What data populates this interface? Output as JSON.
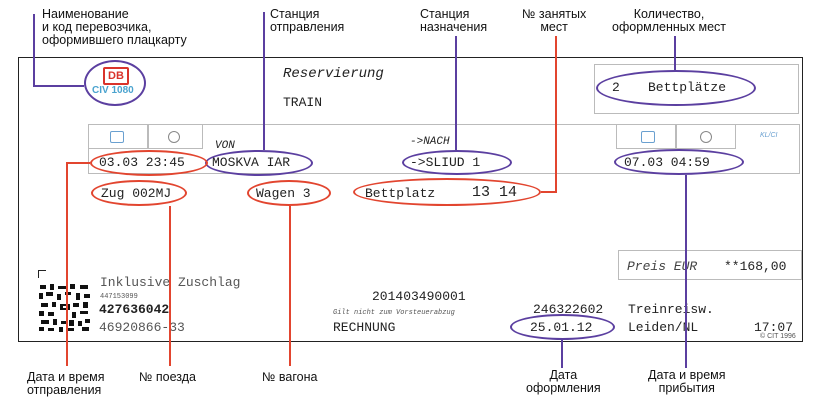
{
  "annotations": {
    "carrier": "Наименование\nи код перевозчика,\nоформившего плацкарту",
    "departure_station": "Станция\nотправления",
    "destination_station": "Станция\nназначения",
    "seats_numbers": "№ занятых\nмест",
    "seats_count": "Количество,\nоформленных мест",
    "departure_datetime": "Дата и время\nотправления",
    "train_number": "№ поезда",
    "car_number": "№ вагона",
    "issue_date": "Дата\nоформления",
    "arrival_datetime": "Дата и время\nприбытия"
  },
  "ticket": {
    "logo_text": "DB",
    "carrier_code": "CIV 1080",
    "title": "Reservierung",
    "subtitle": "TRAIN",
    "seats_count": "2",
    "seats_unit": "Bettplätze",
    "von_label": "VON",
    "nach_label": "->NACH",
    "kl_label": "KL/CI",
    "departure": "03.03 23:45",
    "from_station": "MOSKVA IAR",
    "to_station": "->SLIUD 1",
    "arrival": "07.03 04:59",
    "train": "Zug 002MJ",
    "car": "Wagen 3",
    "berth_label": "Bettplatz",
    "berth_numbers": "13 14",
    "price_label": "Preis EUR",
    "price": "**168,00",
    "surcharge": "Inklusive Zuschlag",
    "small_code": "447153099",
    "code1": "427636042",
    "code2": "46920866-33",
    "doc_number": "201403490001",
    "not_valid_note": "Gilt nicht zum Vorsteuerabzug",
    "invoice": "RECHNUNG",
    "agency_code": "246322602",
    "agency": "Treinreisw.",
    "issue_date": "25.01.12",
    "issue_place": "Leiden/NL",
    "issue_time": "17:07",
    "copyright": "© CIT 1996"
  }
}
